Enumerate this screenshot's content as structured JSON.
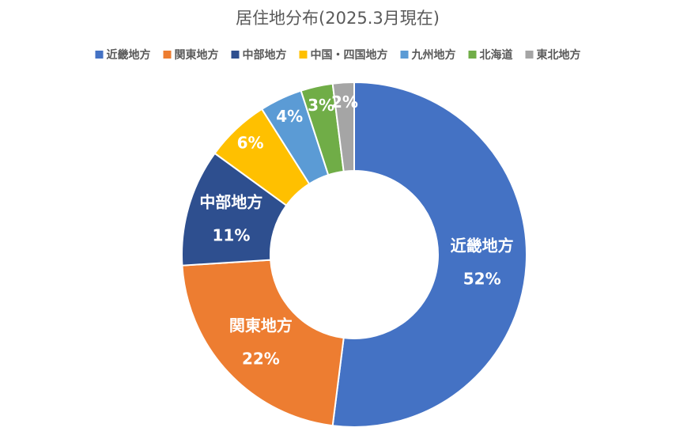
{
  "chart_data": {
    "type": "donut",
    "title": "居住地分布(2025.3月現在)",
    "categories": [
      "近畿地方",
      "関東地方",
      "中部地方",
      "中国・四国地方",
      "九州地方",
      "北海道",
      "東北地方"
    ],
    "values": [
      52,
      22,
      11,
      6,
      4,
      3,
      2
    ],
    "value_labels": [
      "52%",
      "22%",
      "11%",
      "6%",
      "4%",
      "3%",
      "2%"
    ],
    "colors": [
      "#4472c4",
      "#ed7d31",
      "#2e4f8f",
      "#ffc000",
      "#5b9bd5",
      "#70ad47",
      "#a5a5a5"
    ],
    "legend": "top"
  }
}
